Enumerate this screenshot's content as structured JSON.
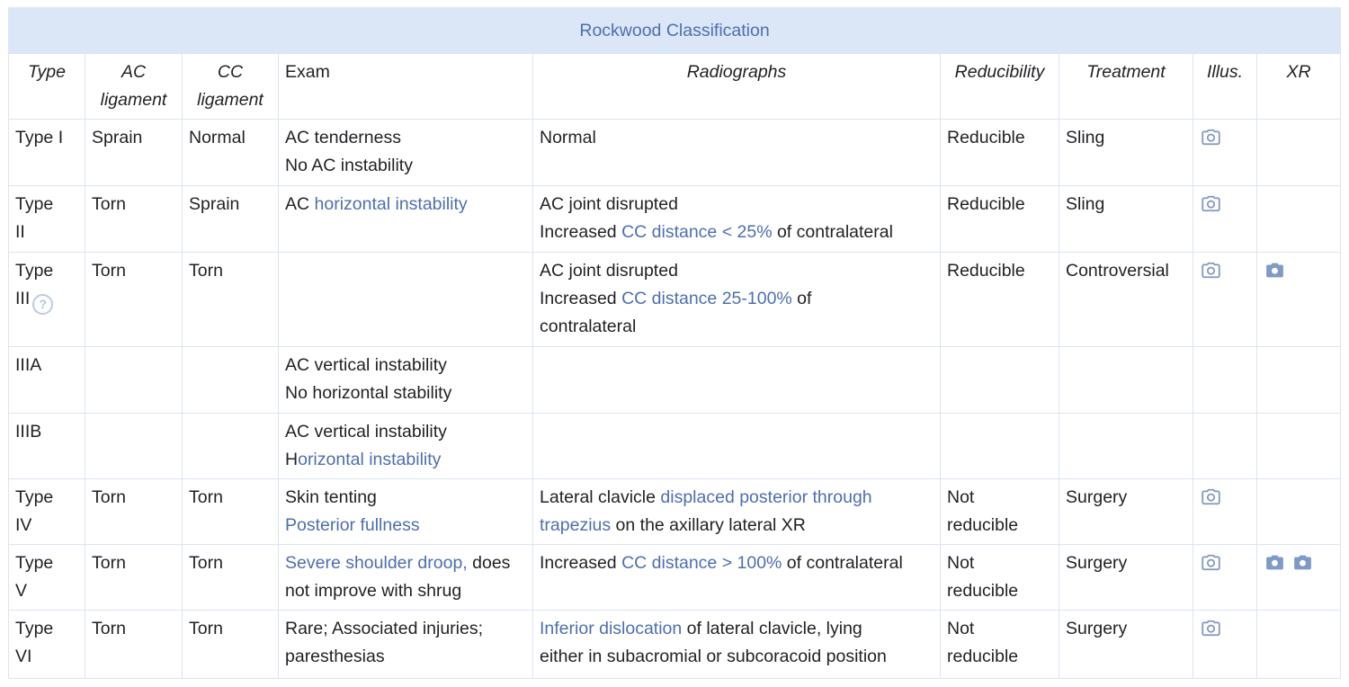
{
  "title": "Rockwood Classification",
  "colors": {
    "title_bar_bg": "#dbe6f7",
    "title_blue": "#4d6fb0",
    "link_blue": "#4d6fb0",
    "border": "#dce4f2",
    "icon_outline_blue": "#8297c2",
    "icon_filled_blue": "#7e9bc5",
    "help_icon_blue": "#bccbe6",
    "body_text": "#1f2124"
  },
  "columns": [
    {
      "id": "type",
      "label": "Type",
      "italic": true,
      "align": "center"
    },
    {
      "id": "ac-ligament",
      "label": "AC ligament",
      "italic": true,
      "align": "center"
    },
    {
      "id": "cc-ligament",
      "label": "CC ligament",
      "italic": true,
      "align": "center"
    },
    {
      "id": "exam",
      "label": "Exam",
      "italic": false,
      "align": "left"
    },
    {
      "id": "radiographs",
      "label": "Radiographs",
      "italic": true,
      "align": "center"
    },
    {
      "id": "reducibility",
      "label": "Reducibility",
      "italic": true,
      "align": "center"
    },
    {
      "id": "treatment",
      "label": "Treatment",
      "italic": true,
      "align": "center"
    },
    {
      "id": "illus",
      "label": "Illus.",
      "italic": true,
      "align": "center"
    },
    {
      "id": "xr",
      "label": "XR",
      "italic": true,
      "align": "center"
    }
  ],
  "rows": [
    {
      "id": "type-i",
      "cells": [
        [
          [
            {
              "text": "Type I"
            }
          ]
        ],
        [
          [
            {
              "text": "Sprain"
            }
          ]
        ],
        [
          [
            {
              "text": "Normal"
            }
          ]
        ],
        [
          [
            {
              "text": "AC tenderness"
            }
          ],
          [
            {
              "text": "No AC instability"
            }
          ]
        ],
        [
          [
            {
              "text": "Normal"
            }
          ]
        ],
        [
          [
            {
              "text": "Reducible"
            }
          ]
        ],
        [
          [
            {
              "text": "Sling"
            }
          ]
        ],
        [
          [
            {
              "icon": "camera-outline-icon"
            }
          ]
        ],
        []
      ]
    },
    {
      "id": "type-ii",
      "cells": [
        [
          [
            {
              "text": "Type"
            }
          ],
          [
            {
              "text": "II"
            }
          ]
        ],
        [
          [
            {
              "text": "Torn"
            }
          ]
        ],
        [
          [
            {
              "text": "Sprain"
            }
          ]
        ],
        [
          [
            {
              "text": "AC "
            },
            {
              "text": "horizontal instability",
              "link": true
            }
          ]
        ],
        [
          [
            {
              "text": "AC joint disrupted"
            }
          ],
          [
            {
              "text": "Increased "
            },
            {
              "text": "CC distance < 25%",
              "link": true
            },
            {
              "text": " of contralateral"
            }
          ]
        ],
        [
          [
            {
              "text": "Reducible"
            }
          ]
        ],
        [
          [
            {
              "text": "Sling"
            }
          ]
        ],
        [
          [
            {
              "icon": "camera-outline-icon"
            }
          ]
        ],
        []
      ]
    },
    {
      "id": "type-iii",
      "cells": [
        [
          [
            {
              "text": "Type"
            }
          ],
          [
            {
              "text": "III"
            },
            {
              "icon": "help-icon"
            }
          ]
        ],
        [
          [
            {
              "text": "Torn"
            }
          ]
        ],
        [
          [
            {
              "text": "Torn"
            }
          ]
        ],
        [],
        [
          [
            {
              "text": "AC joint disrupted"
            }
          ],
          [
            {
              "text": "Increased "
            },
            {
              "text": "CC distance 25-100%",
              "link": true
            },
            {
              "text": " of"
            }
          ],
          [
            {
              "text": "contralateral"
            }
          ]
        ],
        [
          [
            {
              "text": "Reducible"
            }
          ]
        ],
        [
          [
            {
              "text": "Controversial"
            }
          ]
        ],
        [
          [
            {
              "icon": "camera-outline-icon"
            }
          ]
        ],
        [
          [
            {
              "icon": "camera-filled-icon"
            }
          ]
        ]
      ]
    },
    {
      "id": "type-iiia",
      "cells": [
        [
          [
            {
              "text": "IIIA"
            }
          ]
        ],
        [],
        [],
        [
          [
            {
              "text": "AC vertical instability"
            }
          ],
          [
            {
              "text": "No horizontal stability"
            }
          ]
        ],
        [],
        [],
        [],
        [],
        []
      ]
    },
    {
      "id": "type-iiib",
      "cells": [
        [
          [
            {
              "text": "IIIB"
            }
          ]
        ],
        [],
        [],
        [
          [
            {
              "text": "AC vertical instability"
            }
          ],
          [
            {
              "text": "H"
            },
            {
              "text": "orizontal instability",
              "link": true
            }
          ]
        ],
        [],
        [],
        [],
        [],
        []
      ]
    },
    {
      "id": "type-iv",
      "cells": [
        [
          [
            {
              "text": "Type"
            }
          ],
          [
            {
              "text": "IV"
            }
          ]
        ],
        [
          [
            {
              "text": "Torn"
            }
          ]
        ],
        [
          [
            {
              "text": "Torn"
            }
          ]
        ],
        [
          [
            {
              "text": "Skin tenting"
            }
          ],
          [
            {
              "text": "Posterior fullness",
              "link": true
            }
          ]
        ],
        [
          [
            {
              "text": "Lateral clavicle "
            },
            {
              "text": "displaced posterior through",
              "link": true
            }
          ],
          [
            {
              "text": "trapezius",
              "link": true
            },
            {
              "text": " on the axillary lateral XR"
            }
          ]
        ],
        [
          [
            {
              "text": "Not"
            }
          ],
          [
            {
              "text": "reducible"
            }
          ]
        ],
        [
          [
            {
              "text": "Surgery"
            }
          ]
        ],
        [
          [
            {
              "icon": "camera-outline-icon"
            }
          ]
        ],
        []
      ]
    },
    {
      "id": "type-v",
      "cells": [
        [
          [
            {
              "text": "Type"
            }
          ],
          [
            {
              "text": "V"
            }
          ]
        ],
        [
          [
            {
              "text": "Torn"
            }
          ]
        ],
        [
          [
            {
              "text": "Torn"
            }
          ]
        ],
        [
          [
            {
              "text": "Severe shoulder droop,",
              "link": true
            },
            {
              "text": " does"
            }
          ],
          [
            {
              "text": "not improve with shrug"
            }
          ]
        ],
        [
          [
            {
              "text": "Increased "
            },
            {
              "text": "CC distance > 100%",
              "link": true
            },
            {
              "text": " of contralateral"
            }
          ]
        ],
        [
          [
            {
              "text": "Not"
            }
          ],
          [
            {
              "text": "reducible"
            }
          ]
        ],
        [
          [
            {
              "text": "Surgery"
            }
          ]
        ],
        [
          [
            {
              "icon": "camera-outline-icon"
            }
          ]
        ],
        [
          [
            {
              "icon": "camera-filled-icon"
            },
            {
              "icon": "camera-filled-icon"
            }
          ]
        ]
      ]
    },
    {
      "id": "type-vi",
      "cells": [
        [
          [
            {
              "text": "Type"
            }
          ],
          [
            {
              "text": "VI"
            }
          ]
        ],
        [
          [
            {
              "text": "Torn"
            }
          ]
        ],
        [
          [
            {
              "text": "Torn"
            }
          ]
        ],
        [
          [
            {
              "text": "Rare; Associated injuries;"
            }
          ],
          [
            {
              "text": "paresthesias"
            }
          ]
        ],
        [
          [
            {
              "text": "Inferior dislocation",
              "link": true
            },
            {
              "text": " of lateral clavicle, lying"
            }
          ],
          [
            {
              "text": "either in subacromial or subcoracoid position"
            }
          ]
        ],
        [
          [
            {
              "text": "Not"
            }
          ],
          [
            {
              "text": "reducible"
            }
          ]
        ],
        [
          [
            {
              "text": "Surgery"
            }
          ]
        ],
        [
          [
            {
              "icon": "camera-outline-icon"
            }
          ]
        ],
        []
      ]
    }
  ]
}
